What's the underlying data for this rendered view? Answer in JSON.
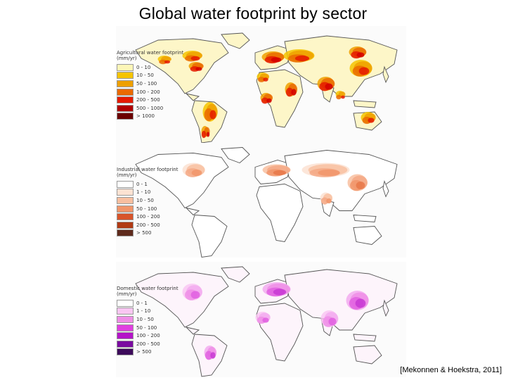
{
  "title": "Global water footprint by sector",
  "citation": "[Mekonnen & Hoekstra, 2011]",
  "panels": [
    {
      "name": "agricultural",
      "legend_title": "Agricultural water footprint (mm/yr)",
      "legend": [
        {
          "label": "0 - 10",
          "color": "#fdf6b8"
        },
        {
          "label": "10 - 50",
          "color": "#f5c400"
        },
        {
          "label": "50 - 100",
          "color": "#eea000"
        },
        {
          "label": "100 - 200",
          "color": "#ea6a00"
        },
        {
          "label": "200 - 500",
          "color": "#e51a00"
        },
        {
          "label": "500 - 1000",
          "color": "#b00000"
        },
        {
          "label": "> 1000",
          "color": "#6a0000"
        }
      ],
      "palette": [
        "#f5c400",
        "#eea000",
        "#ea6a00",
        "#e51a00",
        "#d40000"
      ]
    },
    {
      "name": "industrial",
      "legend_title": "Industrial water footprint (mm/yr)",
      "legend": [
        {
          "label": "0 - 1",
          "color": "#ffffff"
        },
        {
          "label": "1 - 10",
          "color": "#fce2d2"
        },
        {
          "label": "10 - 50",
          "color": "#f8bfa0"
        },
        {
          "label": "50 - 100",
          "color": "#f1956a"
        },
        {
          "label": "100 - 200",
          "color": "#d8542a"
        },
        {
          "label": "200 - 500",
          "color": "#b03a14"
        },
        {
          "label": "> 500",
          "color": "#5e2a1c"
        }
      ],
      "palette": [
        "#fce2d2",
        "#f8bfa0",
        "#f5a885",
        "#f1956a",
        "#e8784a"
      ]
    },
    {
      "name": "domestic",
      "legend_title": "Domestic water footprint (mm/yr)",
      "legend": [
        {
          "label": "0 - 1",
          "color": "#ffffff"
        },
        {
          "label": "1 - 10",
          "color": "#f9c6f2"
        },
        {
          "label": "10 - 50",
          "color": "#ef8ee6"
        },
        {
          "label": "50 - 100",
          "color": "#e03fe0"
        },
        {
          "label": "100 - 200",
          "color": "#b414c8"
        },
        {
          "label": "200 - 500",
          "color": "#7a0aa0"
        },
        {
          "label": "> 500",
          "color": "#3c0a5a"
        }
      ],
      "palette": [
        "#f9c6f2",
        "#f2aaee",
        "#ef8ee6",
        "#e060e0",
        "#c83ad4"
      ]
    }
  ]
}
